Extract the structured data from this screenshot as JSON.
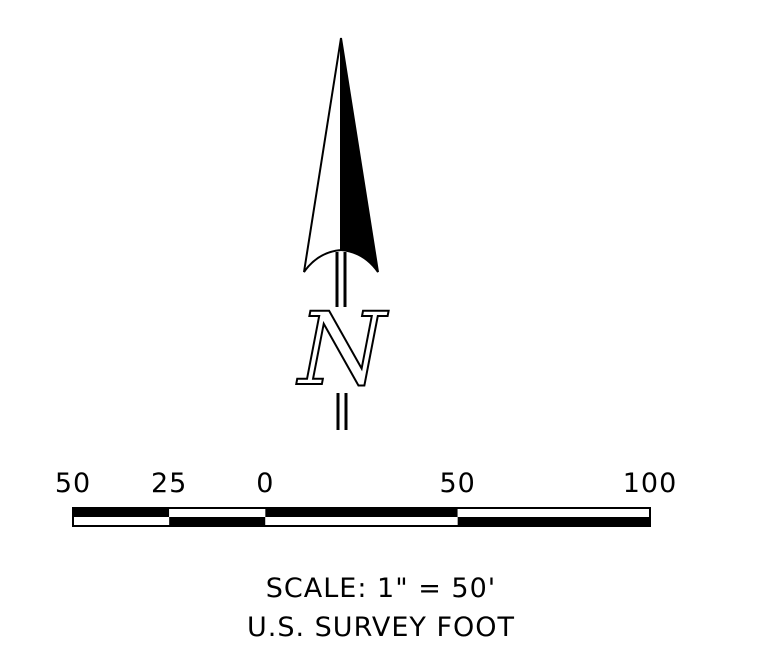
{
  "north_arrow": {
    "letter": "N",
    "icon": "north-arrow-icon"
  },
  "scale_bar": {
    "ticks": [
      {
        "label": "50",
        "value": -50
      },
      {
        "label": "25",
        "value": -25
      },
      {
        "label": "0",
        "value": 0
      },
      {
        "label": "50",
        "value": 50
      },
      {
        "label": "100",
        "value": 100
      }
    ],
    "units_per_inch": 50
  },
  "scale_text": {
    "line1": "SCALE: 1\" = 50'",
    "line2": "U.S. SURVEY FOOT"
  },
  "colors": {
    "ink": "#000000",
    "paper": "#ffffff"
  }
}
